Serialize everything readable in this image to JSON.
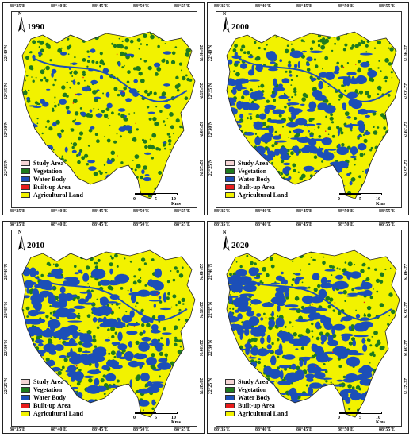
{
  "top_ticks": [
    "88°35'E",
    "88°40'E",
    "88°45'E",
    "88°50'E",
    "88°55'E"
  ],
  "left_ticks": [
    "22°40'N",
    "22°35'N",
    "22°30'N",
    "22°25'N"
  ],
  "legend": [
    {
      "label": "Study Area",
      "color": "#f6d5d5"
    },
    {
      "label": "Vegetation",
      "color": "#1e7a1e"
    },
    {
      "label": "Water Body",
      "color": "#1c4fb8"
    },
    {
      "label": "Built-up Area",
      "color": "#e81c1c"
    },
    {
      "label": "Agricultural Land",
      "color": "#f2f200"
    }
  ],
  "scale": {
    "zero": "0",
    "mid": "5",
    "end": "10 Kms"
  },
  "north_label": "N",
  "panels": [
    {
      "year": "1990",
      "water_share": 0.12
    },
    {
      "year": "2000",
      "water_share": 0.45
    },
    {
      "year": "2010",
      "water_share": 0.55
    },
    {
      "year": "2020",
      "water_share": 0.58
    }
  ]
}
